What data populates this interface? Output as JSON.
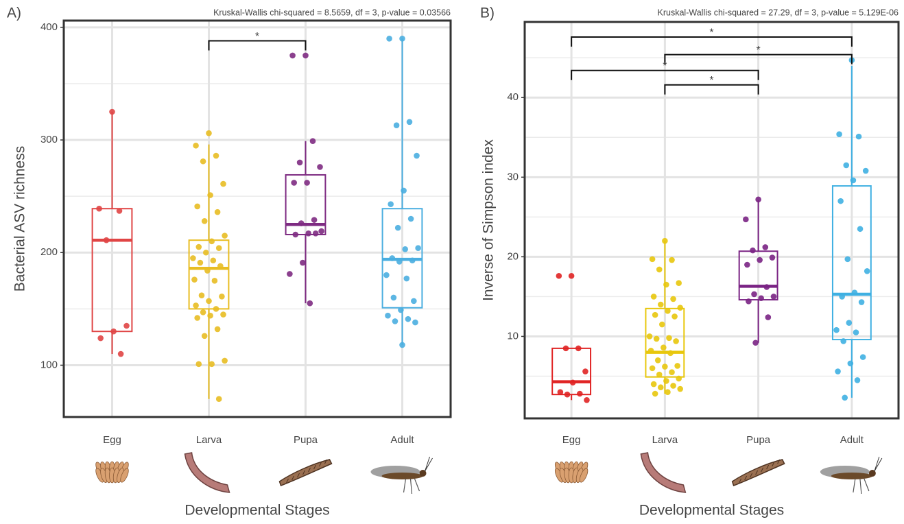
{
  "chart_data": [
    {
      "type": "box",
      "panel_label": "A)",
      "subtitle": "Kruskal-Wallis chi-squared = 8.5659, df = 3, p-value = 0.03566",
      "y_label": "Bacterial ASV richness",
      "x_label": "Developmental Stages",
      "categories": [
        "Egg",
        "Larva",
        "Pupa",
        "Adult"
      ],
      "colors": [
        "#e04545",
        "#e8bd22",
        "#7e2b82",
        "#4aaee0"
      ],
      "boxes": [
        {
          "min": 110,
          "q1": 130,
          "median": 211,
          "q3": 239,
          "max": 325,
          "points": [
            325,
            239,
            237,
            211,
            135,
            130,
            124,
            110
          ]
        },
        {
          "min": 70,
          "q1": 150,
          "median": 186,
          "q3": 211,
          "max": 296,
          "points": [
            306,
            295,
            286,
            281,
            261,
            251,
            241,
            236,
            228,
            215,
            210,
            205,
            204,
            200,
            195,
            193,
            191,
            188,
            184,
            176,
            175,
            162,
            161,
            157,
            153,
            150,
            147,
            145,
            144,
            142,
            132,
            126,
            104,
            101,
            101,
            70
          ]
        },
        {
          "min": 155,
          "q1": 216,
          "median": 225,
          "q3": 269,
          "max": 299,
          "points": [
            375,
            375,
            299,
            280,
            276,
            262,
            262,
            229,
            226,
            219,
            217,
            216,
            217,
            191,
            181,
            155
          ]
        },
        {
          "min": 118,
          "q1": 151,
          "median": 194,
          "q3": 239,
          "max": 390,
          "points": [
            390,
            390,
            316,
            313,
            286,
            255,
            243,
            230,
            222,
            204,
            203,
            195,
            193,
            192,
            180,
            177,
            160,
            157,
            149,
            144,
            141,
            139,
            138,
            118
          ]
        }
      ],
      "ylim": [
        54,
        406
      ],
      "yticks": [
        100,
        200,
        300,
        400
      ],
      "minor_yticks": [
        150,
        250,
        350
      ],
      "grid": true,
      "comparisons": [
        {
          "groups": [
            "Larva",
            "Pupa"
          ],
          "y": 388,
          "label": "*"
        }
      ]
    },
    {
      "type": "box",
      "panel_label": "B)",
      "subtitle": "Kruskal-Wallis chi-squared = 27.29, df = 3, p-value = 5.129E-06",
      "y_label": "Inverse of Simpson index",
      "x_label": "Developmental Stages",
      "categories": [
        "Egg",
        "Larva",
        "Pupa",
        "Adult"
      ],
      "colors": [
        "#e02424",
        "#e8c70c",
        "#7a2384",
        "#3fb0e2"
      ],
      "boxes": [
        {
          "min": 2,
          "q1": 2.7,
          "median": 4.3,
          "q3": 8.5,
          "max": 8.5,
          "points": [
            17.6,
            17.6,
            8.5,
            8.5,
            5.6,
            4.2,
            3.0,
            2.8,
            2.7,
            2.0
          ]
        },
        {
          "min": 2.8,
          "q1": 4.9,
          "median": 8.0,
          "q3": 13.5,
          "max": 22.0,
          "points": [
            22.0,
            19.7,
            19.6,
            18.4,
            16.7,
            16.5,
            15.0,
            14.7,
            14.0,
            13.6,
            13.2,
            12.7,
            12.5,
            11.5,
            10.0,
            9.8,
            9.7,
            9.4,
            8.6,
            8.2,
            7.9,
            7.0,
            6.3,
            6.2,
            6.0,
            5.5,
            5.2,
            4.7,
            4.4,
            4.0,
            3.8,
            3.6,
            3.4,
            3.0,
            2.8
          ]
        },
        {
          "min": 9.2,
          "q1": 14.6,
          "median": 16.3,
          "q3": 20.7,
          "max": 27.1,
          "points": [
            27.2,
            24.7,
            21.2,
            20.8,
            19.9,
            19.6,
            19.0,
            16.2,
            15.3,
            15.0,
            14.8,
            14.4,
            12.4,
            9.2
          ]
        },
        {
          "min": 2.3,
          "q1": 9.6,
          "median": 15.3,
          "q3": 28.9,
          "max": 44.0,
          "points": [
            44.7,
            35.4,
            35.1,
            31.5,
            30.8,
            29.6,
            27.0,
            23.5,
            19.7,
            18.2,
            15.5,
            15.0,
            14.3,
            11.7,
            10.8,
            10.5,
            9.4,
            7.4,
            6.6,
            5.6,
            4.5,
            2.3
          ]
        }
      ],
      "ylim": [
        -0.3,
        49.5
      ],
      "yticks": [
        10,
        20,
        30,
        40
      ],
      "minor_yticks": [
        5,
        15,
        25,
        35,
        45
      ],
      "grid": true,
      "comparisons": [
        {
          "groups": [
            "Egg",
            "Adult"
          ],
          "y": 47.6,
          "label": "*"
        },
        {
          "groups": [
            "Larva",
            "Adult"
          ],
          "y": 45.4,
          "label": "*"
        },
        {
          "groups": [
            "Egg",
            "Pupa"
          ],
          "y": 43.4,
          "label": "*"
        },
        {
          "groups": [
            "Larva",
            "Pupa"
          ],
          "y": 41.6,
          "label": "*"
        }
      ]
    }
  ]
}
